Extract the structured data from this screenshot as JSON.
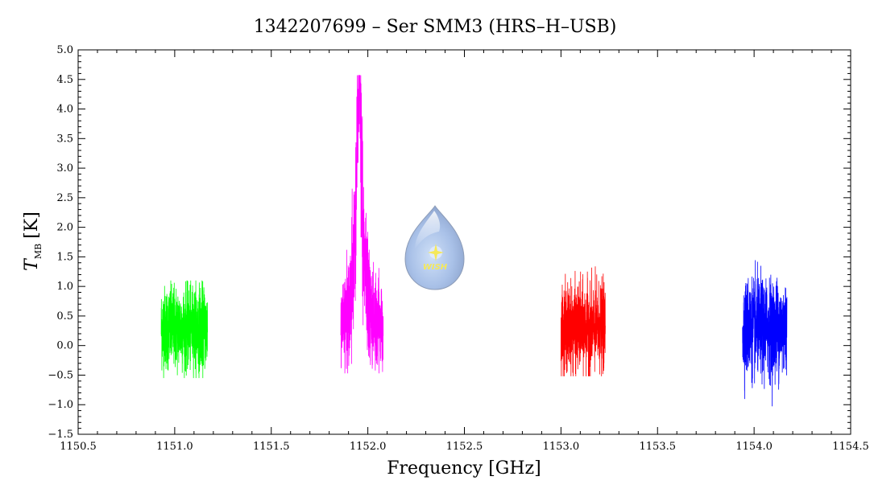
{
  "chart_data": {
    "type": "line",
    "title": "1342207699 – Ser SMM3 (HRS–H–USB)",
    "xlabel": "Frequency [GHz]",
    "ylabel_main": "T",
    "ylabel_sub": "MB",
    "ylabel_unit": "[K]",
    "xlim": [
      1150.5,
      1154.5
    ],
    "ylim": [
      -1.5,
      5.0
    ],
    "x_ticks": [
      "1150.5",
      "1151.0",
      "1151.5",
      "1152.0",
      "1152.5",
      "1153.0",
      "1153.5",
      "1154.0",
      "1154.5"
    ],
    "y_ticks": [
      "−1.5",
      "−1.0",
      "−0.5",
      "0.0",
      "0.5",
      "1.0",
      "1.5",
      "2.0",
      "2.5",
      "3.0",
      "3.5",
      "4.0",
      "4.5",
      "5.0"
    ],
    "grid": false,
    "series": [
      {
        "color": "#00ff00",
        "x_start": 1150.93,
        "x_end": 1151.17,
        "baseline": 0.3,
        "noise": 0.35,
        "min": -0.55,
        "max": 1.1
      },
      {
        "color": "#ff00ff",
        "x_start": 1151.86,
        "x_end": 1152.08,
        "baseline": 0.55,
        "noise": 0.35,
        "min": -0.47,
        "max": 4.57,
        "peak_x": 1151.955,
        "peak_y": 4.2
      },
      {
        "color": "#ff0000",
        "x_start": 1153.0,
        "x_end": 1153.23,
        "baseline": 0.3,
        "noise": 0.35,
        "min": -0.52,
        "max": 1.58
      },
      {
        "color": "#0000ff",
        "x_start": 1153.94,
        "x_end": 1154.17,
        "baseline": 0.3,
        "noise": 0.4,
        "min": -1.12,
        "max": 1.47
      }
    ],
    "logo": {
      "text": "WISH",
      "icon": "wish-droplet-logo"
    }
  }
}
